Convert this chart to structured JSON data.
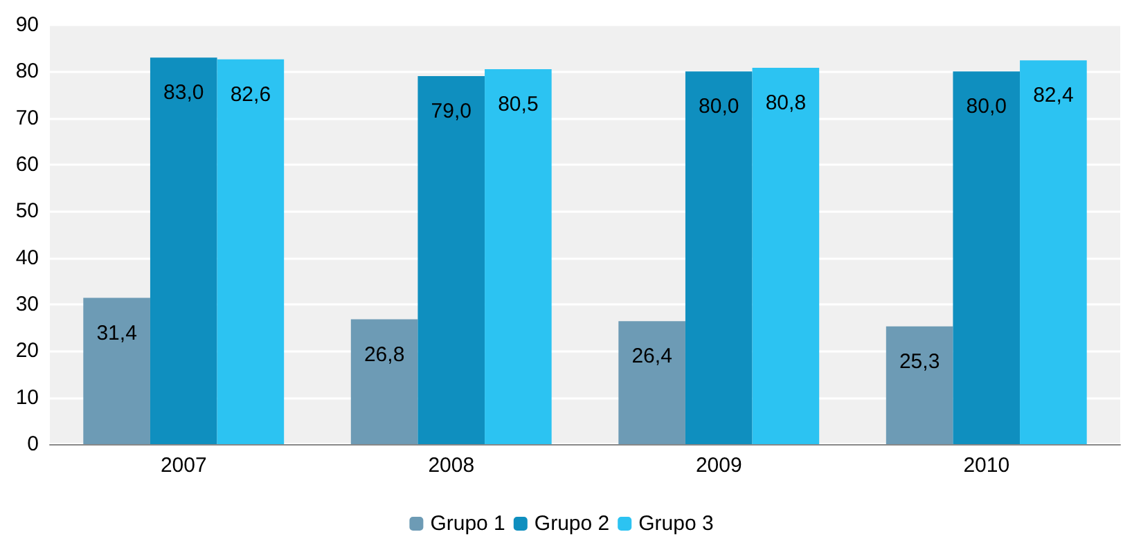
{
  "chart_data": {
    "type": "bar",
    "categories": [
      "2007",
      "2008",
      "2009",
      "2010"
    ],
    "series": [
      {
        "name": "Grupo 1",
        "color": "#6d9bb5",
        "values": [
          31.4,
          26.8,
          26.4,
          25.3
        ],
        "value_labels": [
          "31,4",
          "26,8",
          "26,4",
          "25,3"
        ]
      },
      {
        "name": "Grupo 2",
        "color": "#0f8fbf",
        "values": [
          83.0,
          79.0,
          80.0,
          80.0
        ],
        "value_labels": [
          "83,0",
          "79,0",
          "80,0",
          "80,0"
        ]
      },
      {
        "name": "Grupo 3",
        "color": "#2cc3f2",
        "values": [
          82.6,
          80.5,
          80.8,
          82.4
        ],
        "value_labels": [
          "82,6",
          "80,5",
          "80,8",
          "82,4"
        ]
      }
    ],
    "ylim": [
      0,
      90
    ],
    "yticks": [
      0,
      10,
      20,
      30,
      40,
      50,
      60,
      70,
      80,
      90
    ],
    "grid": "y",
    "legend": "bottom"
  }
}
